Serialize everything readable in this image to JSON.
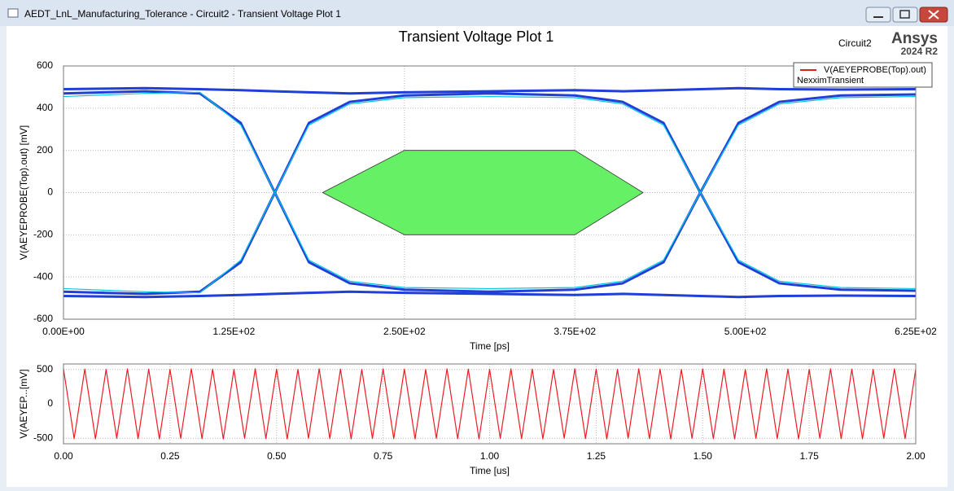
{
  "window": {
    "title": "AEDT_LnL_Manufacturing_Tolerance - Circuit2 - Transient Voltage Plot 1"
  },
  "chart_data": [
    {
      "type": "line",
      "title": "Transient Voltage Plot 1",
      "design": "Circuit2",
      "brand": "Ansys",
      "version": "2024 R2",
      "xlabel": "Time [ps]",
      "ylabel": "V(AEYEPROBE(Top).out) [mV]",
      "legend": {
        "label": "V(AEYEPROBE(Top).out)",
        "source": "NexximTransient",
        "color": "#e02020",
        "position": "upper right"
      },
      "xlim": [
        0,
        625
      ],
      "ylim": [
        -600,
        600
      ],
      "xticks": [
        {
          "value": 0,
          "label": "0.00E+00"
        },
        {
          "value": 125,
          "label": "1.25E+02"
        },
        {
          "value": 250,
          "label": "2.50E+02"
        },
        {
          "value": 375,
          "label": "3.75E+02"
        },
        {
          "value": 500,
          "label": "5.00E+02"
        },
        {
          "value": 625,
          "label": "6.25E+02"
        }
      ],
      "yticks": [
        -600,
        -400,
        -200,
        0,
        200,
        400,
        600
      ],
      "grid": true,
      "x": [
        0,
        60,
        100,
        130,
        155,
        180,
        210,
        250,
        312,
        375,
        410,
        440,
        467,
        495,
        525,
        570,
        625
      ],
      "series": [
        {
          "color": "#1f3fd8",
          "values": [
            470,
            480,
            470,
            330,
            0,
            -330,
            -430,
            -460,
            -470,
            -460,
            -430,
            -330,
            0,
            330,
            430,
            460,
            465
          ]
        },
        {
          "color": "#1f3fd8",
          "values": [
            -470,
            -480,
            -470,
            -330,
            0,
            330,
            430,
            460,
            470,
            460,
            430,
            330,
            0,
            -330,
            -430,
            -460,
            -465
          ]
        },
        {
          "color": "#1f3fd8",
          "values": [
            490,
            495,
            490,
            485,
            480,
            475,
            470,
            475,
            480,
            485,
            480,
            485,
            490,
            495,
            490,
            488,
            490
          ]
        },
        {
          "color": "#1f3fd8",
          "values": [
            -490,
            -495,
            -490,
            -485,
            -480,
            -475,
            -470,
            -475,
            -480,
            -485,
            -480,
            -485,
            -490,
            -495,
            -490,
            -488,
            -490
          ]
        },
        {
          "color": "#00c8e0",
          "values": [
            455,
            470,
            475,
            320,
            0,
            -320,
            -420,
            -450,
            -455,
            -450,
            -420,
            -320,
            0,
            320,
            420,
            450,
            455
          ]
        },
        {
          "color": "#00c8e0",
          "values": [
            -455,
            -470,
            -475,
            -320,
            0,
            320,
            420,
            450,
            455,
            450,
            420,
            320,
            0,
            -320,
            -420,
            -450,
            -455
          ]
        }
      ],
      "mask": {
        "color": "#66f066",
        "x": [
          190,
          250,
          375,
          425,
          375,
          250
        ],
        "y": [
          0,
          200,
          200,
          0,
          -200,
          -200
        ]
      }
    },
    {
      "type": "line",
      "xlabel": "Time [us]",
      "ylabel": "V(AEYEP...[mV]",
      "xlim": [
        0,
        2
      ],
      "ylim": [
        -580,
        580
      ],
      "xticks": [
        {
          "value": 0,
          "label": "0.00"
        },
        {
          "value": 0.25,
          "label": "0.25"
        },
        {
          "value": 0.5,
          "label": "0.50"
        },
        {
          "value": 0.75,
          "label": "0.75"
        },
        {
          "value": 1,
          "label": "1.00"
        },
        {
          "value": 1.25,
          "label": "1.25"
        },
        {
          "value": 1.5,
          "label": "1.50"
        },
        {
          "value": 1.75,
          "label": "1.75"
        },
        {
          "value": 2,
          "label": "2.00"
        }
      ],
      "yticks": [
        -500,
        0,
        500
      ],
      "grid": true,
      "x": [
        0,
        0.025,
        0.05,
        0.075,
        0.1,
        0.125,
        0.15,
        0.175,
        0.2,
        0.225,
        0.25,
        0.275,
        0.3,
        0.325,
        0.35,
        0.375,
        0.4,
        0.425,
        0.45,
        0.475,
        0.5,
        0.525,
        0.55,
        0.575,
        0.6,
        0.625,
        0.65,
        0.675,
        0.7,
        0.725,
        0.75,
        0.775,
        0.8,
        0.825,
        0.85,
        0.875,
        0.9,
        0.925,
        0.95,
        0.975,
        1,
        1.025,
        1.05,
        1.075,
        1.1,
        1.125,
        1.15,
        1.175,
        1.2,
        1.225,
        1.25,
        1.275,
        1.3,
        1.325,
        1.35,
        1.375,
        1.4,
        1.425,
        1.45,
        1.475,
        1.5,
        1.525,
        1.55,
        1.575,
        1.6,
        1.625,
        1.65,
        1.675,
        1.7,
        1.725,
        1.75,
        1.775,
        1.8,
        1.825,
        1.85,
        1.875,
        1.9,
        1.925,
        1.95,
        1.975,
        2
      ],
      "series": [
        {
          "name": "V(AEYEPROBE(Top).out)",
          "color": "#ed1c24",
          "values": [
            510,
            -505,
            505,
            -510,
            500,
            -500,
            510,
            -505,
            505,
            -510,
            500,
            -500,
            510,
            -505,
            505,
            -510,
            500,
            -500,
            510,
            -505,
            505,
            -510,
            500,
            -500,
            510,
            -505,
            505,
            -510,
            500,
            -500,
            510,
            -505,
            505,
            -510,
            500,
            -500,
            510,
            -505,
            505,
            -510,
            500,
            -500,
            510,
            -505,
            505,
            -510,
            500,
            -500,
            510,
            -505,
            505,
            -510,
            500,
            -500,
            510,
            -505,
            505,
            -510,
            500,
            -500,
            510,
            -505,
            505,
            -510,
            500,
            -500,
            510,
            -505,
            505,
            -510,
            500,
            -500,
            510,
            -505,
            505,
            -510,
            500,
            -500,
            510,
            -505,
            505
          ]
        }
      ]
    }
  ]
}
